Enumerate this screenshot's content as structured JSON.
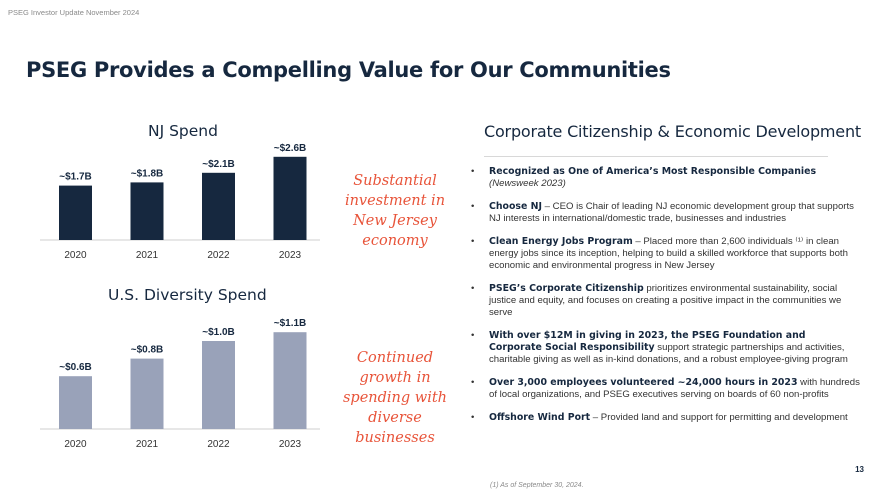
{
  "header_note": "PSEG Investor Update November 2024",
  "page_title": "PSEG Provides a Compelling Value for Our Communities",
  "colors": {
    "navy": "#16283f",
    "slate": "#99a2b9",
    "accent": "#e8543a"
  },
  "chart_data": [
    {
      "type": "bar",
      "title": "NJ Spend",
      "categories": [
        "2020",
        "2021",
        "2022",
        "2023"
      ],
      "values": [
        1.7,
        1.8,
        2.1,
        2.6
      ],
      "labels": [
        "~$1.7B",
        "~$1.8B",
        "~$2.1B",
        "~$2.6B"
      ],
      "unit": "$B",
      "color": "#16283f"
    },
    {
      "type": "bar",
      "title": "U.S. Diversity Spend",
      "categories": [
        "2020",
        "2021",
        "2022",
        "2023"
      ],
      "values": [
        0.6,
        0.8,
        1.0,
        1.1
      ],
      "labels": [
        "~$0.6B",
        "~$0.8B",
        "~$1.0B",
        "~$1.1B"
      ],
      "unit": "$B",
      "color": "#99a2b9"
    }
  ],
  "callouts": {
    "nj": "Substantial investment in New Jersey economy",
    "diversity": "Continued growth in spending with diverse businesses"
  },
  "right": {
    "title": "Corporate Citizenship & Economic Development",
    "bullets": [
      {
        "bold": "Recognized as One of America’s Most Responsible Companies",
        "text": "",
        "sub": "(Newsweek 2023)"
      },
      {
        "bold": "Choose NJ",
        "text": " – CEO is Chair of leading NJ economic development group that supports NJ interests in international/domestic trade, businesses and industries"
      },
      {
        "bold": "Clean Energy Jobs Program",
        "text": " – Placed more than 2,600 individuals ⁽¹⁾ in clean energy jobs since its inception, helping to build a skilled workforce that supports both economic and environmental progress in New Jersey"
      },
      {
        "bold": "PSEG’s Corporate Citizenship",
        "text": " prioritizes environmental sustainability, social justice and equity, and focuses on creating a positive impact in the communities we serve"
      },
      {
        "bold": "With over $12M in giving in 2023, the PSEG Foundation and Corporate Social Responsibility",
        "text": " support strategic partnerships and activities, charitable giving as well as in-kind donations, and a robust employee-giving program"
      },
      {
        "bold": "Over 3,000 employees volunteered ~24,000 hours in 2023",
        "text": " with hundreds of local organizations, and PSEG executives serving on boards of 60 non-profits"
      },
      {
        "bold": "Offshore Wind Port",
        "text": " – Provided land and support for permitting and development"
      }
    ]
  },
  "footnote": "(1) As of September 30, 2024.",
  "page_number": "13"
}
